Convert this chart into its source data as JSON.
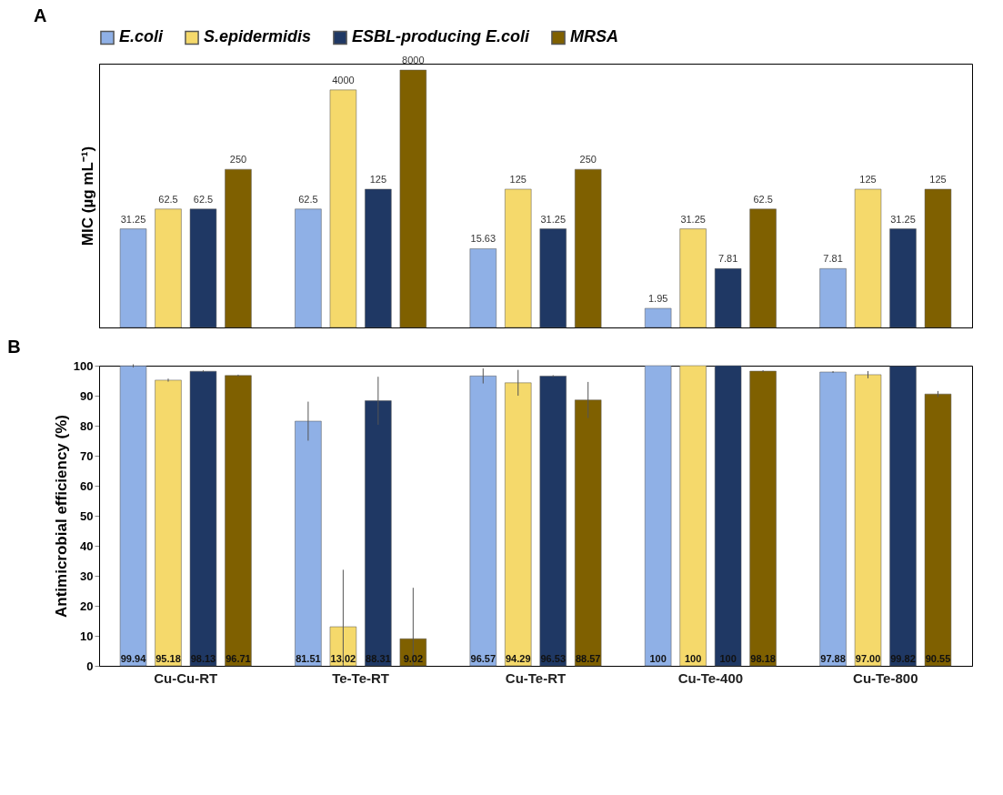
{
  "chart_data": [
    {
      "type": "bar",
      "title": "A",
      "ylabel": "MIC (µg mL⁻¹)",
      "categories": [
        null,
        null,
        null,
        null,
        null
      ],
      "log": true,
      "ylim": [
        1,
        10000
      ],
      "tick_labels": false,
      "data_labels": true,
      "legend": "top",
      "grid": false,
      "series": [
        {
          "name": "E.coli",
          "color": "#8fb0e6",
          "values": [
            31.25,
            62.5,
            15.63,
            1.95,
            7.81
          ]
        },
        {
          "name": "S.epidermidis",
          "color": "#f5d96b",
          "values": [
            62.5,
            4000,
            125,
            31.25,
            125
          ]
        },
        {
          "name": "ESBL-producing E.coli",
          "color": "#1f3864",
          "values": [
            62.5,
            125,
            31.25,
            7.81,
            31.25
          ]
        },
        {
          "name": "MRSA",
          "color": "#7f6000",
          "values": [
            250,
            8000,
            250,
            62.5,
            125
          ]
        }
      ]
    },
    {
      "type": "bar",
      "title": "B",
      "ylabel": "Antimicrobial efficiency (%)",
      "categories": [
        "Cu-Cu-RT",
        "Te-Te-RT",
        "Cu-Te-RT",
        "Cu-Te-400",
        "Cu-Te-800"
      ],
      "ylim": [
        0,
        100
      ],
      "yticks": [
        0,
        10,
        20,
        30,
        40,
        50,
        60,
        70,
        80,
        90,
        100
      ],
      "legend": false,
      "grid": false,
      "series": [
        {
          "name": "E.coli",
          "color": "#8fb0e6",
          "values": [
            99.94,
            81.51,
            96.57,
            100,
            97.88
          ],
          "errors": [
            0.5,
            6.5,
            2.5,
            null,
            0.3
          ],
          "value_labels": [
            "99.94",
            "81.51",
            "96.57",
            "100",
            "97.88"
          ]
        },
        {
          "name": "S.epidermidis",
          "color": "#f5d96b",
          "values": [
            95.18,
            13.02,
            94.29,
            100,
            97.0
          ],
          "errors": [
            0.5,
            [
              0,
              32
            ],
            4.3,
            null,
            1.2
          ],
          "value_labels": [
            "95.18",
            "13.02",
            "94.29",
            "100",
            "97.00"
          ]
        },
        {
          "name": "ESBL-producing E.coli",
          "color": "#1f3864",
          "values": [
            98.13,
            88.31,
            96.53,
            100,
            99.82
          ],
          "errors": [
            0.3,
            8,
            0.3,
            null,
            null
          ],
          "value_labels": [
            "98.13",
            "88.31",
            "96.53",
            "100",
            "99.82"
          ]
        },
        {
          "name": "MRSA",
          "color": "#7f6000",
          "values": [
            96.71,
            9.02,
            88.57,
            98.18,
            90.55
          ],
          "errors": [
            0.3,
            [
              0,
              26
            ],
            6,
            0.3,
            1
          ],
          "value_labels": [
            "96.71",
            "9.02",
            "88.57",
            "98.18",
            "90.55"
          ]
        }
      ]
    }
  ]
}
